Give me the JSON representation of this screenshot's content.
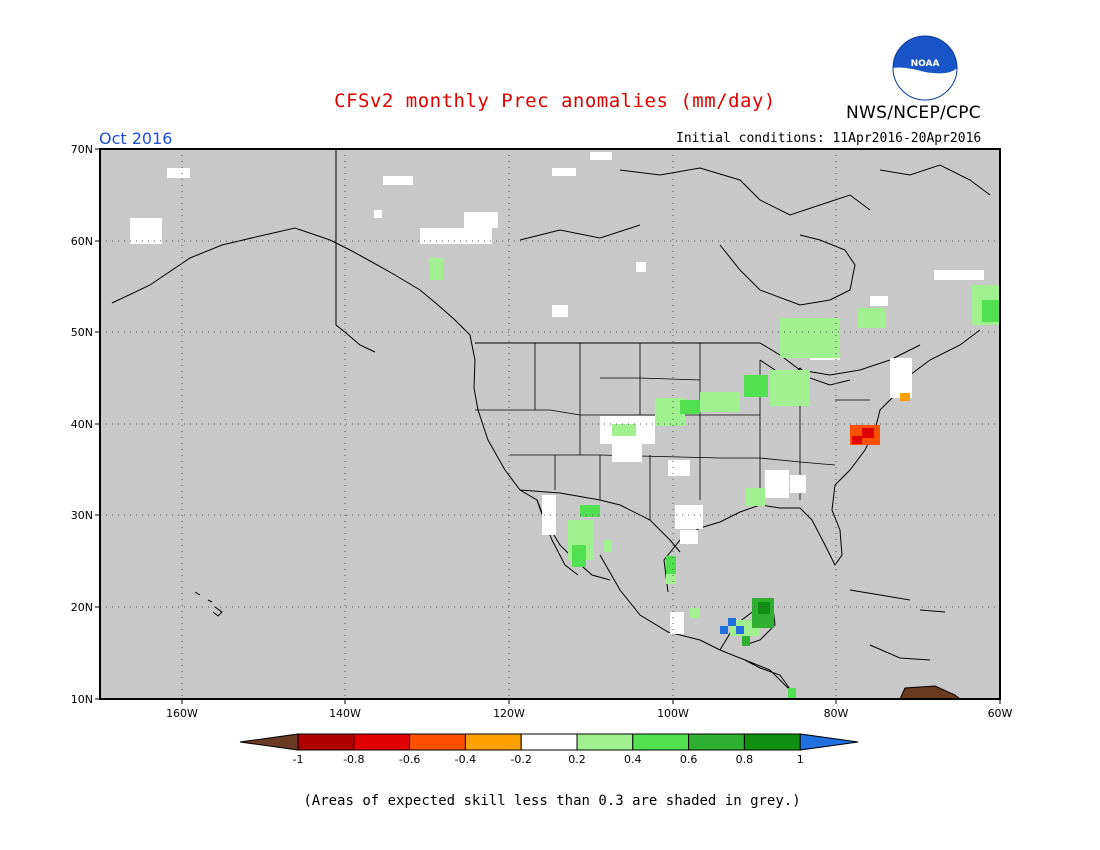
{
  "header": {
    "title": "CFSv2 monthly Prec anomalies (mm/day)",
    "organization": "NWS/NCEP/CPC",
    "logo_text": "NOAA",
    "month": "Oct 2016",
    "initial_conditions": "Initial conditions: 11Apr2016-20Apr2016"
  },
  "map": {
    "background_color": "#c8c8c8",
    "lat_labels": [
      "70N",
      "60N",
      "50N",
      "40N",
      "30N",
      "20N",
      "10N"
    ],
    "lon_labels": [
      "160W",
      "140W",
      "120W",
      "100W",
      "80W",
      "60W"
    ],
    "grid": "dotted"
  },
  "colorbar": {
    "tick_labels": [
      "-1",
      "-0.8",
      "-0.6",
      "-0.4",
      "-0.2",
      "0.2",
      "0.4",
      "0.6",
      "0.8",
      "1"
    ],
    "colors": [
      "#6b3a22",
      "#b00000",
      "#e00000",
      "#ff5000",
      "#ffa000",
      "#ffffff",
      "#a0f090",
      "#50e050",
      "#30b030",
      "#109010",
      "#2070e0"
    ]
  },
  "footer": "(Areas of expected skill less than 0.3 are shaded in grey.)"
}
